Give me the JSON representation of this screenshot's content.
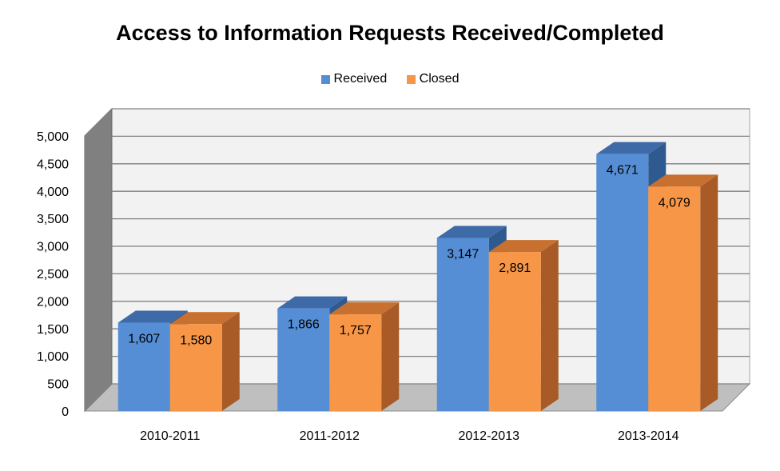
{
  "chart_data": {
    "type": "bar",
    "title": "Access to Information Requests Received/Completed",
    "categories": [
      "2010-2011",
      "2011-2012",
      "2012-2013",
      "2013-2014"
    ],
    "series": [
      {
        "name": "Received",
        "values": [
          1607,
          1866,
          3147,
          4671
        ],
        "color": "#558ED5",
        "top_color": "#3E6BA8",
        "side_color": "#2F5A8F"
      },
      {
        "name": "Closed",
        "values": [
          1580,
          1757,
          2891,
          4079
        ],
        "color": "#F79646",
        "top_color": "#C7702F",
        "side_color": "#A85B27"
      }
    ],
    "data_labels": [
      [
        "1,607",
        "1,866",
        "3,147",
        "4,671"
      ],
      [
        "1,580",
        "1,757",
        "2,891",
        "4,079"
      ]
    ],
    "y_ticks": [
      "0",
      "500",
      "1,000",
      "1,500",
      "2,000",
      "2,500",
      "3,000",
      "3,500",
      "4,000",
      "4,500",
      "5,000"
    ],
    "ylim": [
      0,
      5000
    ],
    "y_step": 500,
    "xlabel": "",
    "ylabel": "",
    "grid": true,
    "legend_position": "top",
    "wall_color": "#F2F2F2",
    "floor_color": "#BFBFBF",
    "side_wall_color": "#808080"
  }
}
